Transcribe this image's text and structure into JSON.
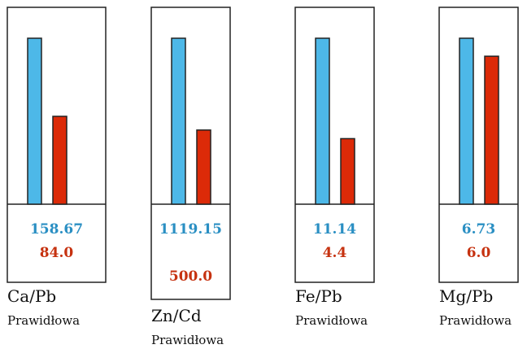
{
  "colors": {
    "primary": "#4db8e8",
    "secondary": "#dc2a08",
    "primary_text": "#2a8fc3",
    "secondary_text": "#c63210",
    "frame": "#222222"
  },
  "chart_data": {
    "type": "bar",
    "categories": [
      "Ca/Pb",
      "Zn/Cd",
      "Fe/Pb",
      "Mg/Pb"
    ],
    "series": [
      {
        "values": [
          158.67,
          1119.15,
          11.14,
          6.73
        ],
        "labels": [
          "158.67",
          "1119.15",
          "11.14",
          "6.73"
        ]
      },
      {
        "values": [
          84.0,
          500.0,
          4.4,
          6.0
        ],
        "labels": [
          "84.0",
          "500.0",
          "4.4",
          "6.0"
        ]
      }
    ],
    "status": [
      "Prawidłowa",
      "Prawidłowa",
      "Prawidłowa",
      "Prawidłowa"
    ]
  }
}
